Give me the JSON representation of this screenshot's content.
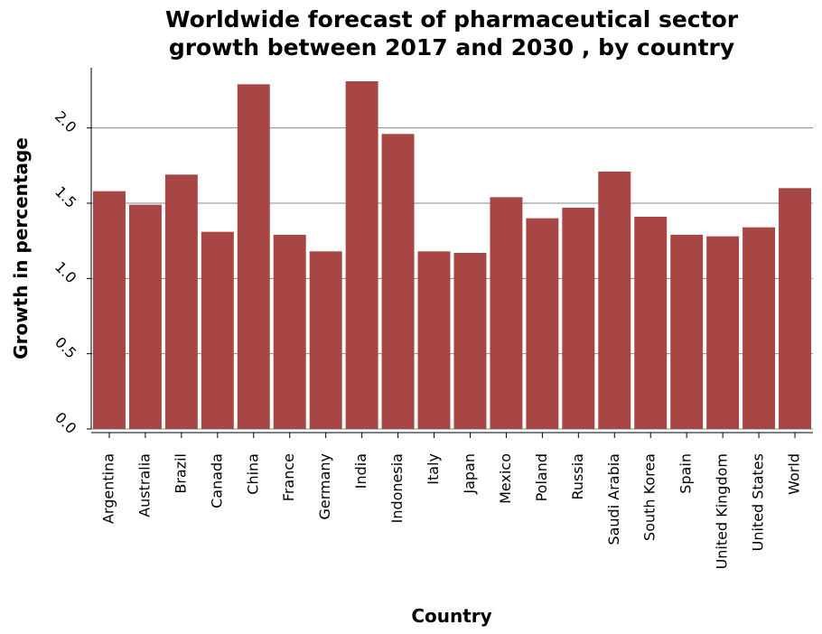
{
  "chart_data": {
    "type": "bar",
    "title_lines": [
      "Worldwide forecast of pharmaceutical sector",
      "growth between 2017 and 2030 , by country"
    ],
    "xlabel": "Country",
    "ylabel": "Growth in percentage",
    "categories": [
      "Argentina",
      "Australia",
      "Brazil",
      "Canada",
      "China",
      "France",
      "Germany",
      "India",
      "Indonesia",
      "Italy",
      "Japan",
      "Mexico",
      "Poland",
      "Russia",
      "Saudi Arabia",
      "South Korea",
      "Spain",
      "United Kingdom",
      "United States",
      "World"
    ],
    "values": [
      1.58,
      1.49,
      1.69,
      1.31,
      2.29,
      1.29,
      1.18,
      2.31,
      1.96,
      1.18,
      1.17,
      1.54,
      1.4,
      1.47,
      1.71,
      1.41,
      1.29,
      1.28,
      1.34,
      1.6
    ],
    "yticks": [
      "0.0",
      "0.5",
      "1.0",
      "1.5",
      "2.0"
    ],
    "ylim": [
      0,
      2.4
    ],
    "grid": true,
    "bar_color": "#a84646",
    "grid_color": "#888888"
  }
}
